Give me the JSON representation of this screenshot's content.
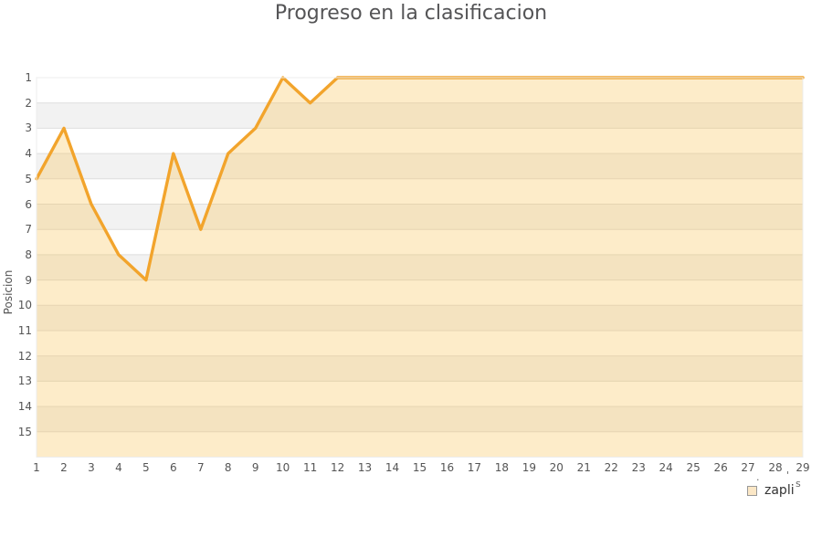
{
  "chart": {
    "title": "Progreso en la clasificacion",
    "y_axis_title": "Posicion",
    "legend": {
      "items": [
        {
          "label": "zapli",
          "swatch_fill": "#fbe7c6",
          "swatch_border": "#999999"
        }
      ]
    },
    "corner_fragments": {
      "dot": ".",
      "tick": "'",
      "letter": "s"
    }
  },
  "chart_data": {
    "type": "area",
    "title": "Progreso en la clasificacion",
    "xlabel": "",
    "ylabel": "Posicion",
    "x": [
      1,
      2,
      3,
      4,
      5,
      6,
      7,
      8,
      9,
      10,
      11,
      12,
      13,
      14,
      15,
      16,
      17,
      18,
      19,
      20,
      21,
      22,
      23,
      24,
      25,
      26,
      27,
      28,
      29
    ],
    "series": [
      {
        "name": "zapli",
        "values": [
          5,
          3,
          6,
          8,
          9,
          4,
          7,
          4,
          3,
          1,
          2,
          1,
          1,
          1,
          1,
          1,
          1,
          1,
          1,
          1,
          1,
          1,
          1,
          1,
          1,
          1,
          1,
          1,
          1
        ]
      }
    ],
    "x_ticks": [
      1,
      2,
      3,
      4,
      5,
      6,
      7,
      8,
      9,
      10,
      11,
      12,
      13,
      14,
      15,
      16,
      17,
      18,
      19,
      20,
      21,
      22,
      23,
      24,
      25,
      26,
      27,
      28,
      29
    ],
    "y_ticks": [
      1,
      2,
      3,
      4,
      5,
      6,
      7,
      8,
      9,
      10,
      11,
      12,
      13,
      14,
      15
    ],
    "xlim": [
      1,
      29
    ],
    "ylim": [
      1,
      16
    ],
    "y_inverted": true,
    "grid": true,
    "legend_position": "bottom-right",
    "line_color": "#F2A42C",
    "fill_color": "rgba(248,192,75,0.30)",
    "band_colors": [
      "#ffffff",
      "#f2f2f2"
    ],
    "gridline_color": "#dedede",
    "plot_border_color": "#ececec"
  }
}
